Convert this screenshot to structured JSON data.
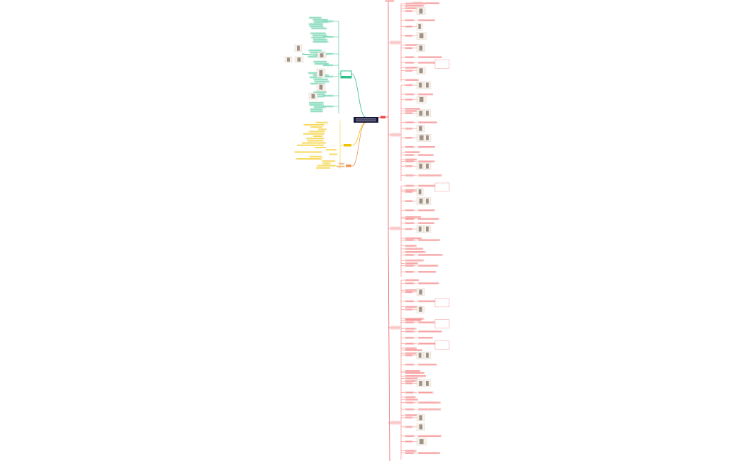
{
  "canvas": {
    "background": "#ffffff"
  },
  "central_node": {
    "fill": "#16163a",
    "text_color": "#ffffff"
  },
  "branches": [
    {
      "id": "red",
      "color": "#f05a5a",
      "node_fill": "#fdecec",
      "tag_fill": "#f04545"
    },
    {
      "id": "green",
      "color": "#2fbf8a",
      "node_fill": "#e3f7ef"
    },
    {
      "id": "yellow",
      "color": "#f2c200",
      "node_fill": "#fbf3cf"
    },
    {
      "id": "orange",
      "color": "#f0924a",
      "node_fill": "#fde6d6"
    }
  ]
}
